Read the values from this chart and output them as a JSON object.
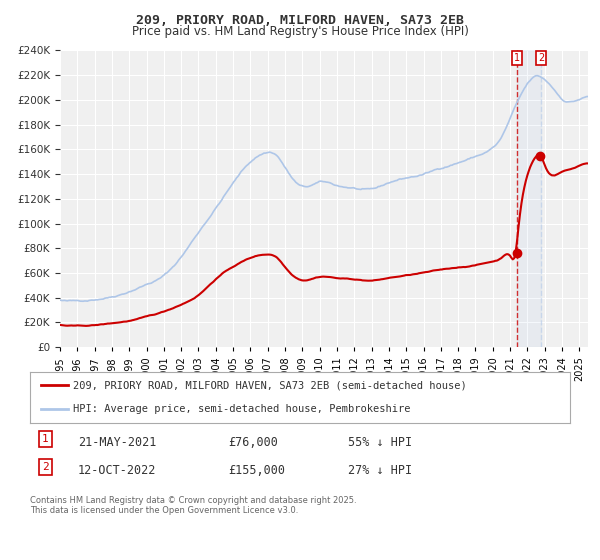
{
  "title": "209, PRIORY ROAD, MILFORD HAVEN, SA73 2EB",
  "subtitle": "Price paid vs. HM Land Registry's House Price Index (HPI)",
  "ylabel_color": "#333333",
  "background_color": "#ffffff",
  "plot_bg_color": "#f0f0f0",
  "grid_color": "#ffffff",
  "hpi_color": "#aec6e8",
  "price_color": "#cc0000",
  "vline1_color": "#cc0000",
  "vline2_color": "#aec6e8",
  "ylim": [
    0,
    240000
  ],
  "yticks": [
    0,
    20000,
    40000,
    60000,
    80000,
    100000,
    120000,
    140000,
    160000,
    180000,
    200000,
    220000,
    240000
  ],
  "sale1_date_x": 2021.38,
  "sale1_price": 76000,
  "sale2_date_x": 2022.78,
  "sale2_price": 155000,
  "legend1_label": "209, PRIORY ROAD, MILFORD HAVEN, SA73 2EB (semi-detached house)",
  "legend2_label": "HPI: Average price, semi-detached house, Pembrokeshire",
  "table_row1": [
    "1",
    "21-MAY-2021",
    "£76,000",
    "55% ↓ HPI"
  ],
  "table_row2": [
    "2",
    "12-OCT-2022",
    "£155,000",
    "27% ↓ HPI"
  ],
  "footnote": "Contains HM Land Registry data © Crown copyright and database right 2025.\nThis data is licensed under the Open Government Licence v3.0.",
  "xmin": 1995,
  "xmax": 2025.5
}
